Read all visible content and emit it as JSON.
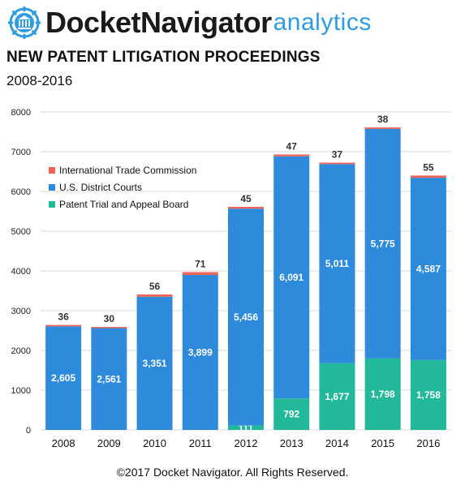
{
  "header": {
    "brand": "DocketNavigator",
    "brand_sub": "analytics"
  },
  "title": "NEW PATENT LITIGATION PROCEEDINGS",
  "subtitle": "2008-2016",
  "copyright": "©2017 Docket Navigator. All Rights Reserved.",
  "colors": {
    "itc": "#f0635a",
    "district": "#2e8bdc",
    "ptab": "#22b99a",
    "grid": "#d9d9d9",
    "brand_accent": "#2f9be0"
  },
  "chart_data": {
    "type": "bar",
    "stacked": true,
    "categories": [
      "2008",
      "2009",
      "2010",
      "2011",
      "2012",
      "2013",
      "2014",
      "2015",
      "2016"
    ],
    "series": [
      {
        "name": "Patent Trial and Appeal Board",
        "values": [
          0,
          0,
          0,
          0,
          111,
          792,
          1677,
          1798,
          1758
        ],
        "labels": [
          "",
          "",
          "",
          "",
          "111",
          "792",
          "1,677",
          "1,798",
          "1,758"
        ]
      },
      {
        "name": "U.S. District Courts",
        "values": [
          2605,
          2561,
          3351,
          3899,
          5456,
          6091,
          5011,
          5775,
          4587
        ],
        "labels": [
          "2,605",
          "2,561",
          "3,351",
          "3,899",
          "5,456",
          "6,091",
          "5,011",
          "5,775",
          "4,587"
        ]
      },
      {
        "name": "International Trade Commission",
        "values": [
          36,
          30,
          56,
          71,
          45,
          47,
          37,
          38,
          55
        ],
        "labels": [
          "36",
          "30",
          "56",
          "71",
          "45",
          "47",
          "37",
          "38",
          "55"
        ]
      }
    ],
    "legend_order": [
      "International Trade Commission",
      "U.S. District Courts",
      "Patent Trial and Appeal Board"
    ],
    "legend_position": "top-left",
    "ylim": [
      0,
      8000
    ],
    "yticks": [
      "0",
      "1000",
      "2000",
      "3000",
      "4000",
      "5000",
      "6000",
      "7000",
      "8000"
    ],
    "grid": true
  }
}
